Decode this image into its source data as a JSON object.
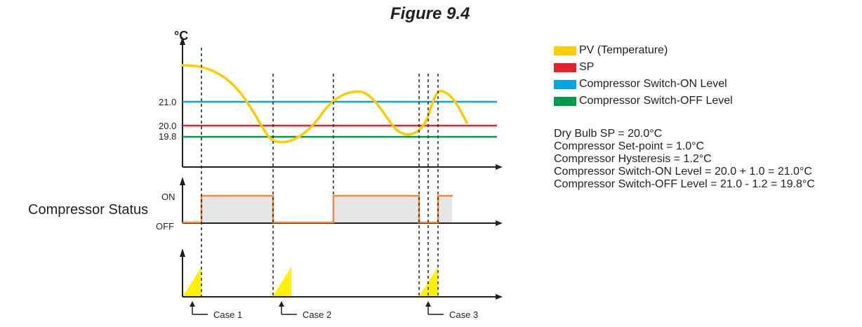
{
  "figure_title": "Figure 9.4",
  "y_axis_unit": "°C",
  "levels": [
    {
      "value": "21.0",
      "color": "#00a7e1"
    },
    {
      "value": "20.0",
      "color": "#e3232a"
    },
    {
      "value": "19.8",
      "color": "#009a4e"
    }
  ],
  "status_label": "Compressor Status",
  "status_on": "ON",
  "status_off": "OFF",
  "cases": [
    "Case 1",
    "Case 2",
    "Case 3"
  ],
  "legend": [
    {
      "label": "PV (Temperature)",
      "color": "#ffcc00"
    },
    {
      "label": "SP",
      "color": "#e3232a"
    },
    {
      "label": "Compressor Switch-ON Level",
      "color": "#00a7e1"
    },
    {
      "label": "Compressor Switch-OFF Level",
      "color": "#009a4e"
    }
  ],
  "notes": [
    "Dry Bulb SP = 20.0°C",
    "Compressor Set-point = 1.0°C",
    "Compressor Hysteresis = 1.2°C",
    "Compressor Switch-ON Level = 20.0 + 1.0 = 21.0°C",
    "Compressor Switch-OFF Level = 21.0 - 1.2 = 19.8°C"
  ],
  "colors": {
    "pv_curve": "#ffcc00",
    "compressor_line": "#f08a3c",
    "compressor_fill": "#e6e6e6",
    "trigger_fill": "#fff200",
    "axis": "#231f20"
  }
}
